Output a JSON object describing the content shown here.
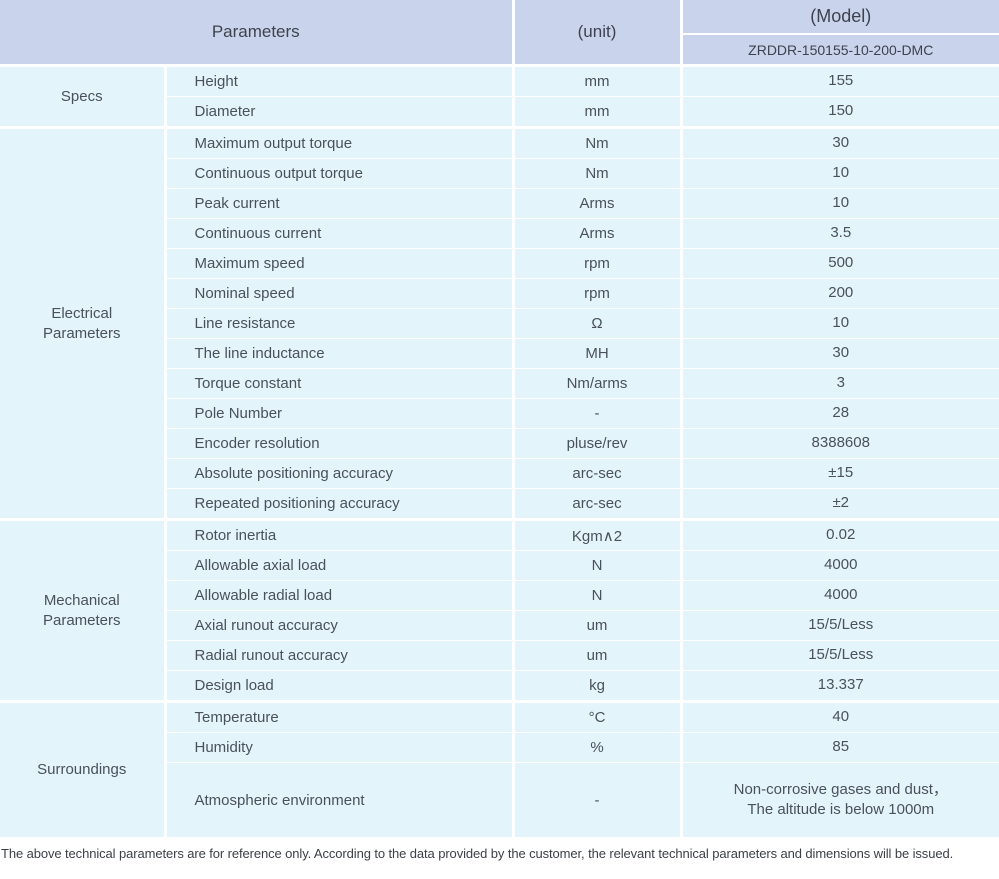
{
  "colors": {
    "header_bg": "#cad3ec",
    "cell_bg": "#e3f4fb",
    "separator": "#ffffff",
    "text": "#4a5159"
  },
  "header": {
    "parameters_label": "Parameters",
    "unit_label": "(unit)",
    "model_label": "(Model)",
    "model_number": "ZRDDR-150155-10-200-DMC"
  },
  "groups": [
    {
      "name": "Specs",
      "rows": [
        {
          "param": "Height",
          "unit": "mm",
          "value": "155"
        },
        {
          "param": "Diameter",
          "unit": "mm",
          "value": "150"
        }
      ]
    },
    {
      "name": "Electrical\nParameters",
      "rows": [
        {
          "param": "Maximum output torque",
          "unit": "Nm",
          "value": "30"
        },
        {
          "param": "Continuous output torque",
          "unit": "Nm",
          "value": "10"
        },
        {
          "param": "Peak current",
          "unit": "Arms",
          "value": "10"
        },
        {
          "param": "Continuous current",
          "unit": "Arms",
          "value": "3.5"
        },
        {
          "param": "Maximum speed",
          "unit": "rpm",
          "value": "500"
        },
        {
          "param": "Nominal speed",
          "unit": "rpm",
          "value": "200"
        },
        {
          "param": "Line resistance",
          "unit": "Ω",
          "value": "10"
        },
        {
          "param": "The line inductance",
          "unit": "MH",
          "value": "30"
        },
        {
          "param": "Torque constant",
          "unit": "Nm/arms",
          "value": "3"
        },
        {
          "param": "Pole Number",
          "unit": "-",
          "value": "28"
        },
        {
          "param": "Encoder resolution",
          "unit": "pluse/rev",
          "value": "8388608"
        },
        {
          "param": "Absolute positioning accuracy",
          "unit": "arc-sec",
          "value": "±15"
        },
        {
          "param": "Repeated positioning accuracy",
          "unit": "arc-sec",
          "value": "±2"
        }
      ]
    },
    {
      "name": "Mechanical\nParameters",
      "rows": [
        {
          "param": "Rotor inertia",
          "unit": "Kgm∧2",
          "value": "0.02"
        },
        {
          "param": "Allowable axial load",
          "unit": "N",
          "value": "4000"
        },
        {
          "param": "Allowable radial load",
          "unit": "N",
          "value": "4000"
        },
        {
          "param": "Axial runout accuracy",
          "unit": "um",
          "value": "15/5/Less"
        },
        {
          "param": "Radial runout accuracy",
          "unit": "um",
          "value": "15/5/Less"
        },
        {
          "param": "Design load",
          "unit": "kg",
          "value": "13.337"
        }
      ]
    },
    {
      "name": "Surroundings",
      "rows": [
        {
          "param": "Temperature",
          "unit": "°C",
          "value": "40"
        },
        {
          "param": "Humidity",
          "unit": "%",
          "value": "85"
        },
        {
          "param": "Atmospheric environment",
          "unit": "-",
          "value": "Non-corrosive gases and dust，\nThe altitude is below 1000m",
          "tall": true
        }
      ]
    }
  ],
  "footer_note": "The above technical parameters are for reference only. According to the data provided by the customer, the relevant technical parameters and dimensions will be issued."
}
